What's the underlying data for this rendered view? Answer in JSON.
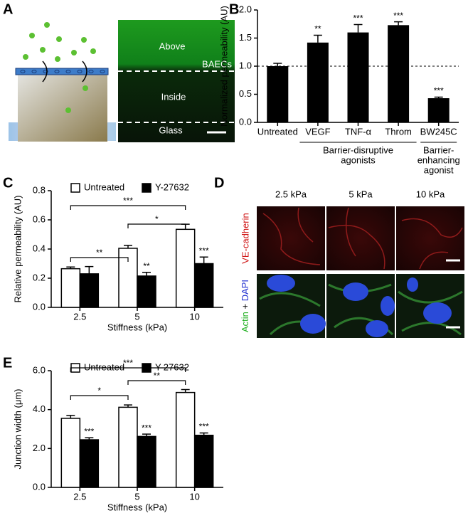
{
  "panel_a": {
    "label": "A",
    "above": "Above",
    "cells": "BAECs",
    "inside": "Inside",
    "glass": "Glass"
  },
  "panel_d": {
    "label": "D",
    "columns": [
      "2.5 kPa",
      "5 kPa",
      "10 kPa"
    ],
    "ve_cadherin": "VE-cadherin",
    "actin": "Actin",
    "plus": "+",
    "dapi": "DAPI"
  },
  "chart_data": [
    {
      "type": "bar",
      "label": "B",
      "ylabel": "Normalized permeability (AU)",
      "categories": [
        "Untreated",
        "VEGF",
        "TNF-α",
        "Throm",
        "BW245C"
      ],
      "values": [
        1.0,
        1.42,
        1.6,
        1.73,
        0.43
      ],
      "errors": [
        0.05,
        0.13,
        0.14,
        0.06,
        0.02
      ],
      "significance": [
        null,
        "**",
        "***",
        "***",
        "***"
      ],
      "color": "#000000",
      "reference_line": 1,
      "groups": [
        {
          "lines": [
            "Barrier-disruptive",
            "agonists"
          ]
        },
        {
          "lines": [
            "Barrier-",
            "enhancing",
            "agonist"
          ]
        }
      ],
      "ylim": [
        0,
        2
      ],
      "yticks": [
        {
          "value": 0,
          "label": "0.0"
        },
        {
          "value": 0.5,
          "label": "0.5"
        },
        {
          "value": 1,
          "label": "1.0"
        },
        {
          "value": 1.5,
          "label": "1.5"
        },
        {
          "value": 2,
          "label": "2.0"
        }
      ]
    },
    {
      "type": "grouped_bar",
      "label": "C",
      "ylabel": "Relative permeability (AU)",
      "xlabel": "Stiffness (kPa)",
      "categories": [
        "2.5",
        "5",
        "10"
      ],
      "series": [
        {
          "name": "Untreated",
          "color": "#ffffff",
          "values": [
            0.265,
            0.405,
            0.535
          ],
          "errors": [
            0.012,
            0.02,
            0.035
          ]
        },
        {
          "name": "Y-27632",
          "color": "#000000",
          "values": [
            0.23,
            0.215,
            0.3
          ],
          "errors": [
            0.05,
            0.025,
            0.045
          ],
          "significance": [
            null,
            "**",
            "***"
          ]
        }
      ],
      "comparisons": [
        "**",
        "*",
        "***"
      ],
      "ylim": [
        0,
        0.8
      ],
      "yticks": [
        {
          "value": 0,
          "label": "0.0"
        },
        {
          "value": 0.2,
          "label": "0.2"
        },
        {
          "value": 0.4,
          "label": "0.4"
        },
        {
          "value": 0.6,
          "label": "0.6"
        },
        {
          "value": 0.8,
          "label": "0.8"
        }
      ]
    },
    {
      "type": "grouped_bar",
      "label": "E",
      "ylabel": "Junction width (μm)",
      "xlabel": "Stiffness (kPa)",
      "categories": [
        "2.5",
        "5",
        "10"
      ],
      "series": [
        {
          "name": "Untreated",
          "color": "#ffffff",
          "values": [
            3.55,
            4.12,
            4.88
          ],
          "errors": [
            0.15,
            0.12,
            0.15
          ]
        },
        {
          "name": "Y-27632",
          "color": "#000000",
          "values": [
            2.45,
            2.62,
            2.68
          ],
          "errors": [
            0.1,
            0.12,
            0.12
          ],
          "significance": [
            "***",
            "***",
            "***"
          ]
        }
      ],
      "comparisons": [
        "*",
        "**",
        "***"
      ],
      "ylim": [
        0,
        6
      ],
      "yticks": [
        {
          "value": 0,
          "label": "0.0"
        },
        {
          "value": 2,
          "label": "2.0"
        },
        {
          "value": 4,
          "label": "4.0"
        },
        {
          "value": 6,
          "label": "6.0"
        }
      ]
    }
  ]
}
